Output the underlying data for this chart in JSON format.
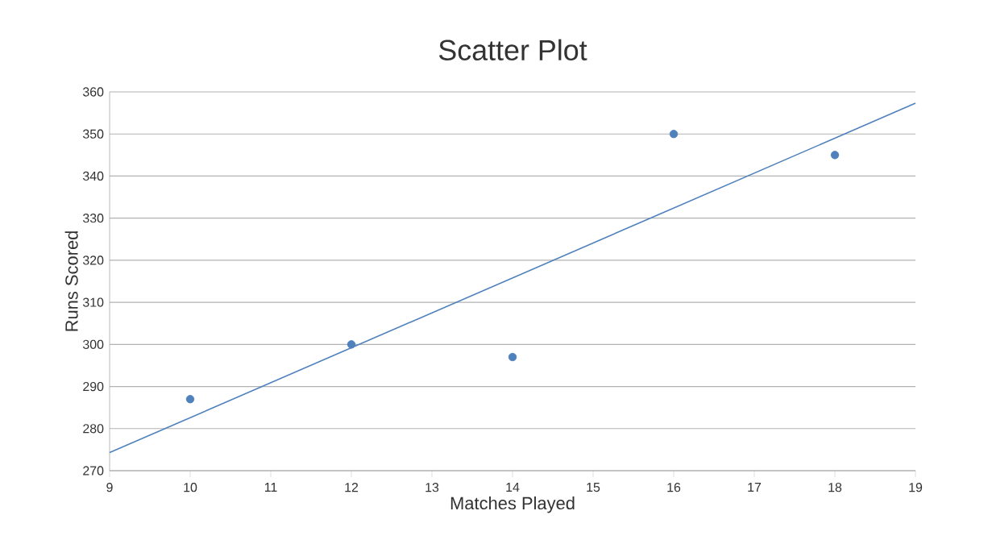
{
  "chart_data": {
    "type": "scatter",
    "title": "Scatter Plot",
    "xlabel": "Matches Played",
    "ylabel": "Runs Scored",
    "xlim": [
      9,
      19
    ],
    "xticks": [
      9,
      10,
      11,
      12,
      13,
      14,
      15,
      16,
      17,
      18,
      19
    ],
    "ylim": [
      270,
      360
    ],
    "yticks": [
      270,
      280,
      290,
      300,
      310,
      320,
      330,
      340,
      350,
      360
    ],
    "grid": "y",
    "marker": "circle",
    "series": [
      {
        "color": "#4f81bd",
        "x": [
          10,
          12,
          14,
          16,
          18
        ],
        "values": [
          287,
          300,
          297,
          350,
          345
        ]
      },
      {
        "type": "line",
        "color": "#4f81bd",
        "marker": "none",
        "line_style": "solid",
        "x": [
          9,
          19
        ],
        "values": [
          274.3,
          357.3
        ]
      }
    ]
  }
}
